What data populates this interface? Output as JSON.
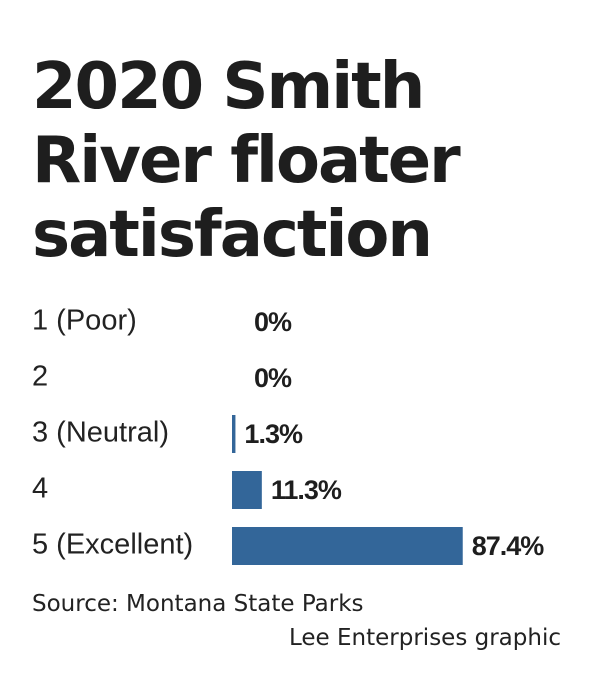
{
  "chart_data": {
    "type": "bar",
    "orientation": "horizontal",
    "title": "2020 Smith River floater satisfaction",
    "categories": [
      "1 (Poor)",
      "2",
      "3 (Neutral)",
      "4",
      "5 (Excellent)"
    ],
    "values": [
      0,
      0,
      1.3,
      11.3,
      87.4
    ],
    "value_labels": [
      "0%",
      "0%",
      "1.3%",
      "11.3%",
      "87.4%"
    ],
    "xlim": [
      0,
      100
    ],
    "bar_color": "#336699",
    "grid": false,
    "legend": "none"
  },
  "footer": {
    "source": "Source: Montana State Parks",
    "credit": "Lee Enterprises graphic"
  }
}
